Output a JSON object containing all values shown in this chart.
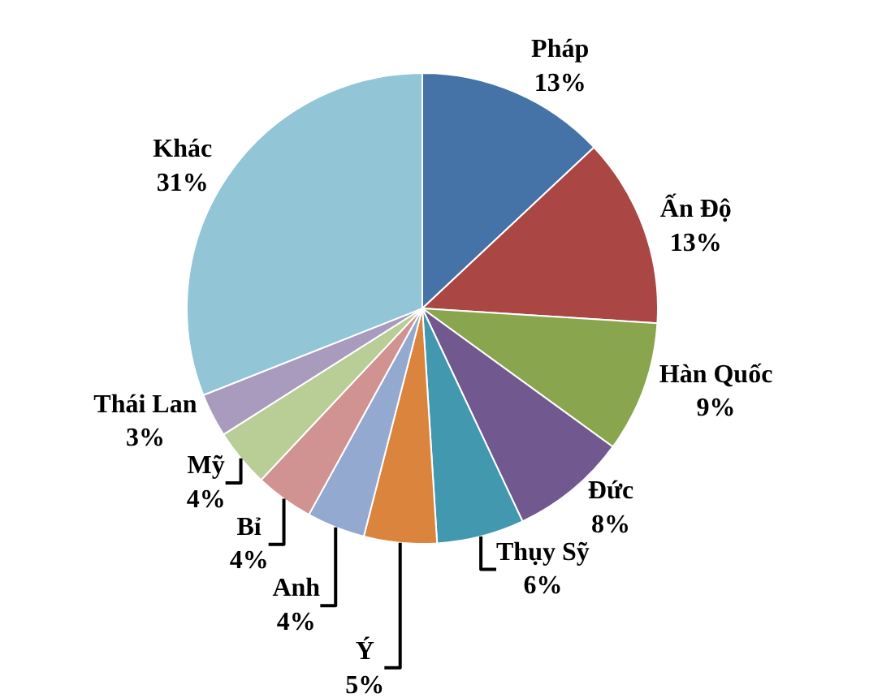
{
  "chart_data": {
    "type": "pie",
    "categories": [
      "Pháp",
      "Ấn Độ",
      "Hàn Quốc",
      "Đức",
      "Thụy Sỹ",
      "Ý",
      "Anh",
      "Bỉ",
      "Mỹ",
      "Thái Lan",
      "Khác"
    ],
    "values": [
      13,
      13,
      9,
      8,
      6,
      5,
      4,
      4,
      4,
      3,
      31
    ],
    "value_labels": [
      "13%",
      "13%",
      "9%",
      "8%",
      "6%",
      "5%",
      "4%",
      "4%",
      "4%",
      "3%",
      "31%"
    ],
    "colors": [
      "#4572a7",
      "#aa4643",
      "#89a54e",
      "#71588f",
      "#4198af",
      "#db843d",
      "#93a9cf",
      "#d19392",
      "#b9cd96",
      "#a99bbd",
      "#92c5d6"
    ],
    "legend": false
  }
}
